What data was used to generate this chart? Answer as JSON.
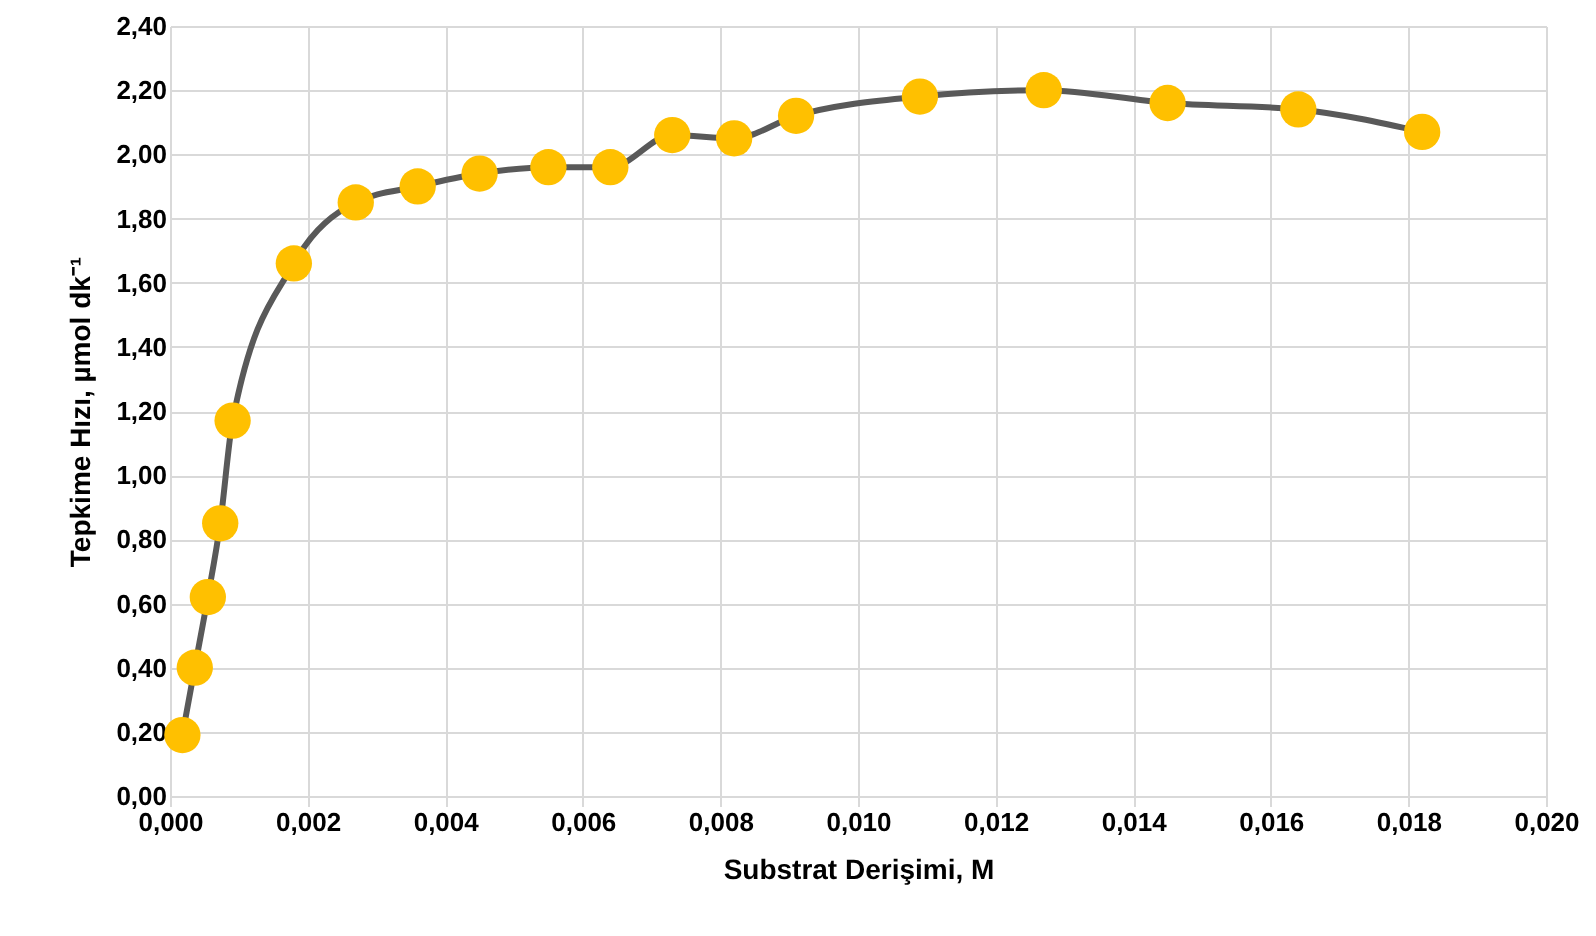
{
  "chart_data": {
    "type": "line",
    "xlabel": "Substrat Derişimi, M",
    "ylabel": "Tepkime Hızı, µmol dk⁻¹",
    "x": [
      0.00018,
      0.00036,
      0.00055,
      0.00073,
      0.00091,
      0.0018,
      0.0027,
      0.0036,
      0.0045,
      0.0055,
      0.0064,
      0.0073,
      0.0082,
      0.0091,
      0.0109,
      0.0127,
      0.0145,
      0.0164,
      0.0182
    ],
    "series": [
      {
        "color": "#595959",
        "colors": [
          "#ffc000",
          "#ffc000",
          "#ffc000",
          "#ffc000",
          "#ffc000",
          "#ffc000",
          "#ffc000",
          "#ffc000",
          "#ffc000",
          "#ffc000",
          "#ffc000",
          "#ffc000",
          "#ffc000",
          "#ffc000",
          "#ffc000",
          "#ffc000",
          "#ffc000",
          "#ffc000",
          "#ffc000"
        ],
        "values": [
          0.19,
          0.4,
          0.62,
          0.85,
          1.17,
          1.66,
          1.85,
          1.9,
          1.94,
          1.96,
          1.96,
          2.06,
          2.05,
          2.12,
          2.18,
          2.2,
          2.16,
          2.14,
          2.07
        ]
      }
    ],
    "marker": "circle",
    "grid": true,
    "xlim": [
      0,
      0.02
    ],
    "ylim": [
      0,
      2.4
    ],
    "xticks": [
      {
        "value": 0,
        "label": "0,000"
      },
      {
        "value": 0.002,
        "label": "0,002"
      },
      {
        "value": 0.004,
        "label": "0,004"
      },
      {
        "value": 0.006,
        "label": "0,006"
      },
      {
        "value": 0.008,
        "label": "0,008"
      },
      {
        "value": 0.01,
        "label": "0,010"
      },
      {
        "value": 0.012,
        "label": "0,012"
      },
      {
        "value": 0.014,
        "label": "0,014"
      },
      {
        "value": 0.016,
        "label": "0,016"
      },
      {
        "value": 0.018,
        "label": "0,018"
      },
      {
        "value": 0.02,
        "label": "0,020"
      }
    ],
    "yticks": [
      {
        "value": 0,
        "label": "0,00"
      },
      {
        "value": 0.2,
        "label": "0,20"
      },
      {
        "value": 0.4,
        "label": "0,40"
      },
      {
        "value": 0.6,
        "label": "0,60"
      },
      {
        "value": 0.8,
        "label": "0,80"
      },
      {
        "value": 1,
        "label": "1,00"
      },
      {
        "value": 1.2,
        "label": "1,20"
      },
      {
        "value": 1.4,
        "label": "1,40"
      },
      {
        "value": 1.6,
        "label": "1,60"
      },
      {
        "value": 1.8,
        "label": "1,80"
      },
      {
        "value": 2,
        "label": "2,00"
      },
      {
        "value": 2.2,
        "label": "2,20"
      },
      {
        "value": 2.4,
        "label": "2,40"
      }
    ]
  }
}
